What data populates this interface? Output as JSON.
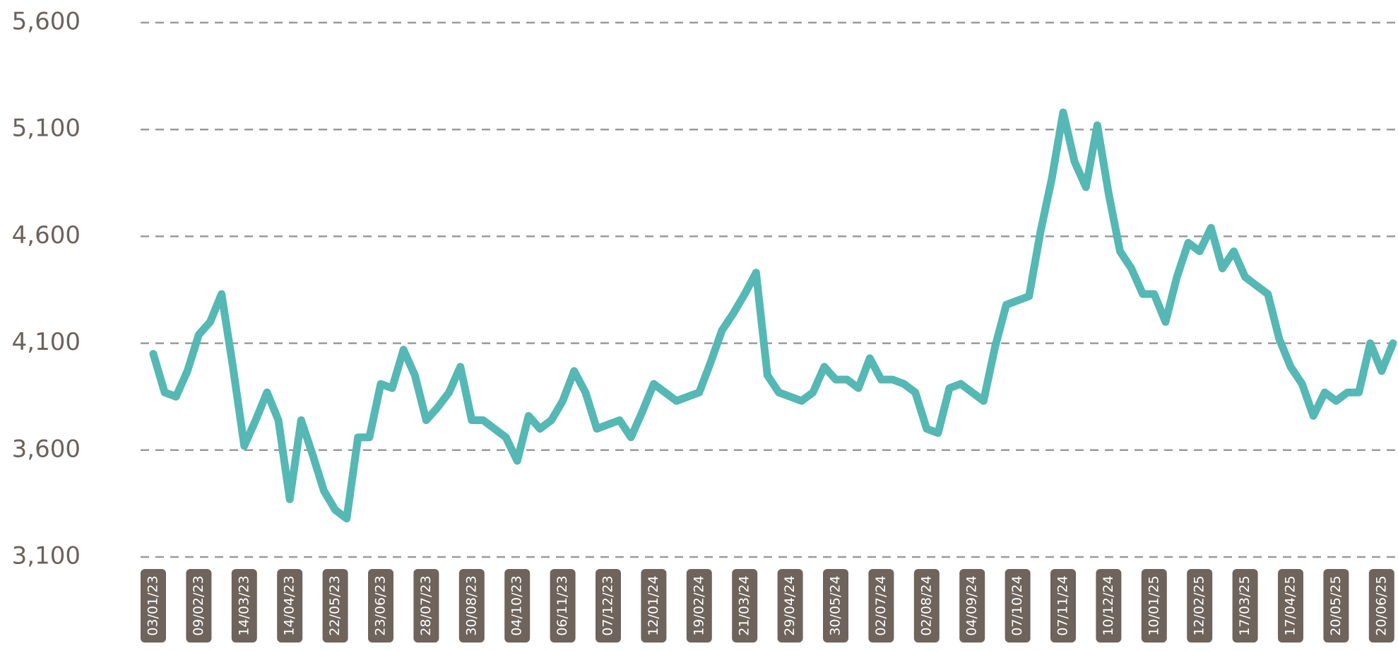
{
  "chart_data": {
    "type": "line",
    "categories": [
      "03/01/23",
      null,
      null,
      null,
      "09/02/23",
      null,
      null,
      null,
      "14/03/23",
      null,
      null,
      null,
      "14/04/23",
      null,
      null,
      null,
      "22/05/23",
      null,
      null,
      null,
      "23/06/23",
      null,
      null,
      null,
      "28/07/23",
      null,
      null,
      null,
      "30/08/23",
      null,
      null,
      null,
      "04/10/23",
      null,
      null,
      null,
      "06/11/23",
      null,
      null,
      null,
      "07/12/23",
      null,
      null,
      null,
      "12/01/24",
      null,
      null,
      null,
      "19/02/24",
      null,
      null,
      null,
      "21/03/24",
      null,
      null,
      null,
      "29/04/24",
      null,
      null,
      null,
      "30/05/24",
      null,
      null,
      null,
      "02/07/24",
      null,
      null,
      null,
      "02/08/24",
      null,
      null,
      null,
      "04/09/24",
      null,
      null,
      null,
      "07/10/24",
      null,
      null,
      null,
      "07/11/24",
      null,
      null,
      null,
      "10/12/24",
      null,
      null,
      null,
      "10/01/25",
      null,
      null,
      null,
      "12/02/25",
      null,
      null,
      null,
      "17/03/25",
      null,
      null,
      null,
      "17/04/25",
      null,
      null,
      null,
      "20/05/25",
      null,
      null,
      null,
      "20/06/25",
      null
    ],
    "values": [
      4050,
      3870,
      3850,
      3970,
      4140,
      4200,
      4330,
      3990,
      3620,
      3740,
      3870,
      3740,
      3370,
      3740,
      3580,
      3410,
      3320,
      3280,
      3660,
      3660,
      3910,
      3890,
      4070,
      3950,
      3740,
      3800,
      3870,
      3990,
      3740,
      3740,
      3700,
      3660,
      3550,
      3760,
      3700,
      3740,
      3830,
      3970,
      3870,
      3700,
      3720,
      3740,
      3660,
      3780,
      3910,
      3870,
      3830,
      3850,
      3870,
      4010,
      4160,
      4240,
      4330,
      4430,
      3950,
      3870,
      3850,
      3830,
      3870,
      3990,
      3930,
      3930,
      3890,
      4030,
      3930,
      3930,
      3910,
      3870,
      3700,
      3680,
      3890,
      3910,
      3870,
      3830,
      4080,
      4280,
      4300,
      4320,
      4620,
      4870,
      5180,
      4950,
      4830,
      5120,
      4800,
      4530,
      4450,
      4330,
      4330,
      4200,
      4410,
      4570,
      4530,
      4640,
      4450,
      4530,
      4410,
      4370,
      4330,
      4120,
      3990,
      3910,
      3760,
      3870,
      3830,
      3870,
      3870,
      4100,
      3970,
      4100
    ],
    "color": "#55b8b4",
    "ylim": [
      3100,
      5600
    ],
    "yticks": [
      {
        "value": 3100,
        "label": "3,100"
      },
      {
        "value": 3600,
        "label": "3,600"
      },
      {
        "value": 4100,
        "label": "4,100"
      },
      {
        "value": 4600,
        "label": "4,600"
      },
      {
        "value": 5100,
        "label": "5,100"
      },
      {
        "value": 5600,
        "label": "5,600"
      }
    ],
    "grid": true
  }
}
